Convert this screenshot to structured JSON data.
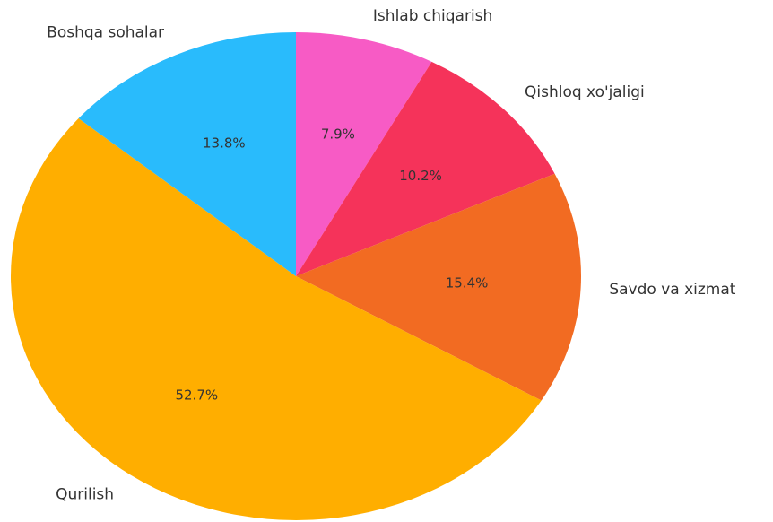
{
  "chart_data": {
    "type": "pie",
    "categories": [
      "Ishlab chiqarish",
      "Qishloq xo'jaligi",
      "Savdo va xizmat",
      "Qurilish",
      "Boshqa sohalar"
    ],
    "values": [
      7.9,
      10.2,
      15.4,
      52.7,
      13.8
    ],
    "value_labels": [
      "7.9%",
      "10.2%",
      "15.4%",
      "52.7%",
      "13.8%"
    ],
    "colors": [
      "#f75bc5",
      "#f5335a",
      "#f26b22",
      "#ffae00",
      "#29bbfc"
    ]
  }
}
